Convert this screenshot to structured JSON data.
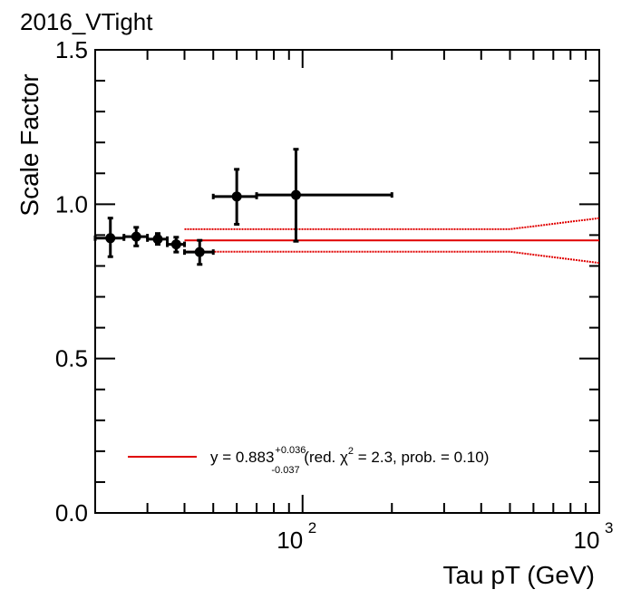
{
  "chart_data": {
    "type": "scatter",
    "title": "2016_VTight",
    "xlabel": "Tau pT (GeV)",
    "ylabel": "Scale Factor",
    "x_scale": "log",
    "xlim": [
      20,
      1000
    ],
    "ylim": [
      0.0,
      1.5
    ],
    "y_ticks": [
      "0.0",
      "0.5",
      "1.0",
      "1.5"
    ],
    "x_tick_labels": [
      {
        "value": 100,
        "base": "10",
        "exp": "2"
      },
      {
        "value": 1000,
        "base": "10",
        "exp": "3"
      }
    ],
    "points": [
      {
        "x": 22.5,
        "xlo": 20,
        "xhi": 25,
        "y": 0.89,
        "ylo": 0.83,
        "yhi": 0.955
      },
      {
        "x": 27.5,
        "xlo": 25,
        "xhi": 30,
        "y": 0.895,
        "ylo": 0.865,
        "yhi": 0.925
      },
      {
        "x": 32.5,
        "xlo": 30,
        "xhi": 35,
        "y": 0.887,
        "ylo": 0.87,
        "yhi": 0.905
      },
      {
        "x": 37.5,
        "xlo": 35,
        "xhi": 40,
        "y": 0.87,
        "ylo": 0.845,
        "yhi": 0.893
      },
      {
        "x": 45,
        "xlo": 40,
        "xhi": 50,
        "y": 0.845,
        "ylo": 0.805,
        "yhi": 0.883
      },
      {
        "x": 60,
        "xlo": 50,
        "xhi": 70,
        "y": 1.025,
        "ylo": 0.935,
        "yhi": 1.113
      },
      {
        "x": 95,
        "xlo": 70,
        "xhi": 200,
        "y": 1.03,
        "ylo": 0.88,
        "yhi": 1.178
      }
    ],
    "fit": {
      "y": 0.883,
      "x_start": 40,
      "x_end": 1000,
      "band_upper": [
        {
          "x": 40,
          "y": 0.919
        },
        {
          "x": 500,
          "y": 0.919
        },
        {
          "x": 1000,
          "y": 0.955
        }
      ],
      "band_lower": [
        {
          "x": 40,
          "y": 0.846
        },
        {
          "x": 500,
          "y": 0.846
        },
        {
          "x": 1000,
          "y": 0.81
        }
      ],
      "color": "#e00000"
    },
    "marker_color": "#000000",
    "legend": {
      "prefix": "y = 0.883",
      "sup": "+0.036",
      "sub": "-0.037",
      "suffix_1": " (red. ",
      "chi": "χ",
      "chi_exp": "2",
      "suffix_2": " = 2.3, prob. = 0.10)"
    }
  }
}
